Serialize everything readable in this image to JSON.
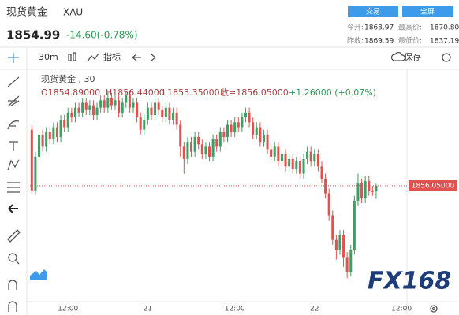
{
  "header": {
    "title": "现货黄金",
    "symbol": "XAU",
    "price": "1854.99",
    "change": "-14.60(-0.78%)",
    "buttons": [
      "交易",
      "全屏"
    ],
    "stats": [
      [
        "今开:",
        "1868.97",
        "最高价:",
        "1870.80"
      ],
      [
        "昨收:",
        "1869.59",
        "最低价:",
        "1837.19"
      ]
    ]
  },
  "toolbar": {
    "interval": "30m",
    "indicators": "指标",
    "save": "保存"
  },
  "chart_data": {
    "type": "candlestick",
    "legend": {
      "name": "现货黄金 , 30",
      "open": "O1854.89000",
      "high": "H1856.44000",
      "low": "L1853.35000",
      "close": "收=1856.05000",
      "change": "+1.26000 (+0.07%)"
    },
    "up_color": "#3f9f63",
    "down_color": "#e0514f",
    "xlim": [
      -0.5,
      103.5
    ],
    "xticks": [
      {
        "value": 10,
        "label": "12:00"
      },
      {
        "value": 32,
        "label": "21"
      },
      {
        "value": 56,
        "label": "12:00"
      },
      {
        "value": 78,
        "label": "22"
      },
      {
        "value": 102,
        "label": "12:00"
      }
    ],
    "ylim": [
      1832.4,
      1879.5
    ],
    "price_line": {
      "value": 1856.05,
      "label": "1856.05000",
      "color": "#e0514f"
    },
    "watermark": "FX168",
    "ohlc": [
      [
        1867.5,
        1868.5,
        1854.5,
        1855.1
      ],
      [
        1855.1,
        1863.0,
        1854.1,
        1862.0
      ],
      [
        1862.0,
        1867.5,
        1861.0,
        1866.5
      ],
      [
        1866.5,
        1867.5,
        1863.0,
        1864.0
      ],
      [
        1864.0,
        1868.0,
        1863.0,
        1867.0
      ],
      [
        1867.0,
        1868.0,
        1864.5,
        1865.5
      ],
      [
        1865.5,
        1869.0,
        1864.5,
        1868.0
      ],
      [
        1868.0,
        1869.0,
        1865.0,
        1866.0
      ],
      [
        1866.0,
        1870.5,
        1865.0,
        1869.5
      ],
      [
        1869.5,
        1870.5,
        1867.0,
        1868.0
      ],
      [
        1868.0,
        1872.0,
        1867.0,
        1871.0
      ],
      [
        1871.0,
        1872.0,
        1869.0,
        1870.0
      ],
      [
        1870.0,
        1873.0,
        1869.0,
        1872.0
      ],
      [
        1872.0,
        1873.0,
        1870.0,
        1871.0
      ],
      [
        1871.0,
        1874.0,
        1870.0,
        1873.0
      ],
      [
        1873.0,
        1874.0,
        1870.5,
        1871.5
      ],
      [
        1871.5,
        1873.5,
        1870.5,
        1872.5
      ],
      [
        1872.5,
        1873.5,
        1869.5,
        1870.5
      ],
      [
        1870.5,
        1873.0,
        1869.5,
        1872.0
      ],
      [
        1872.0,
        1874.5,
        1871.0,
        1873.5
      ],
      [
        1873.5,
        1874.5,
        1871.0,
        1872.0
      ],
      [
        1872.0,
        1875.0,
        1871.0,
        1874.0
      ],
      [
        1874.0,
        1875.0,
        1871.5,
        1872.5
      ],
      [
        1872.5,
        1874.5,
        1871.5,
        1873.5
      ],
      [
        1873.5,
        1874.5,
        1870.0,
        1871.0
      ],
      [
        1871.0,
        1874.0,
        1870.0,
        1873.0
      ],
      [
        1873.0,
        1875.5,
        1872.0,
        1874.5
      ],
      [
        1874.5,
        1875.5,
        1871.0,
        1872.0
      ],
      [
        1872.0,
        1874.0,
        1871.0,
        1873.0
      ],
      [
        1873.0,
        1874.0,
        1869.0,
        1870.0
      ],
      [
        1870.0,
        1871.0,
        1866.5,
        1867.5
      ],
      [
        1867.5,
        1870.5,
        1866.5,
        1869.5
      ],
      [
        1869.5,
        1873.0,
        1868.5,
        1872.0
      ],
      [
        1872.0,
        1873.0,
        1869.5,
        1870.5
      ],
      [
        1870.5,
        1874.0,
        1869.5,
        1873.0
      ],
      [
        1873.0,
        1874.0,
        1870.5,
        1871.5
      ],
      [
        1871.5,
        1872.5,
        1869.0,
        1870.0
      ],
      [
        1870.0,
        1873.0,
        1869.0,
        1872.0
      ],
      [
        1872.0,
        1873.0,
        1868.5,
        1869.5
      ],
      [
        1869.5,
        1872.0,
        1868.5,
        1871.0
      ],
      [
        1871.0,
        1872.0,
        1867.5,
        1868.5
      ],
      [
        1868.5,
        1869.5,
        1862.0,
        1864.0
      ],
      [
        1864.0,
        1865.0,
        1858.5,
        1861.5
      ],
      [
        1861.5,
        1866.0,
        1860.5,
        1865.0
      ],
      [
        1865.0,
        1866.0,
        1862.0,
        1863.0
      ],
      [
        1863.0,
        1867.0,
        1862.0,
        1866.0
      ],
      [
        1866.0,
        1867.0,
        1863.5,
        1864.5
      ],
      [
        1864.5,
        1865.5,
        1861.5,
        1862.5
      ],
      [
        1862.5,
        1865.0,
        1861.5,
        1864.0
      ],
      [
        1864.0,
        1865.0,
        1861.0,
        1862.0
      ],
      [
        1862.0,
        1866.5,
        1861.0,
        1865.5
      ],
      [
        1865.5,
        1866.5,
        1863.0,
        1864.0
      ],
      [
        1864.0,
        1868.0,
        1863.0,
        1867.0
      ],
      [
        1867.0,
        1868.0,
        1865.0,
        1866.0
      ],
      [
        1866.0,
        1869.5,
        1865.0,
        1868.5
      ],
      [
        1868.5,
        1869.5,
        1866.0,
        1867.0
      ],
      [
        1867.0,
        1870.0,
        1866.0,
        1869.0
      ],
      [
        1869.0,
        1870.0,
        1867.0,
        1868.0
      ],
      [
        1868.0,
        1871.0,
        1867.0,
        1870.0
      ],
      [
        1870.0,
        1872.0,
        1869.0,
        1871.0
      ],
      [
        1871.0,
        1872.0,
        1868.0,
        1869.0
      ],
      [
        1869.0,
        1870.0,
        1865.5,
        1866.5
      ],
      [
        1866.5,
        1869.0,
        1865.5,
        1868.0
      ],
      [
        1868.0,
        1869.0,
        1864.0,
        1865.0
      ],
      [
        1865.0,
        1867.5,
        1864.0,
        1866.5
      ],
      [
        1866.5,
        1867.5,
        1862.5,
        1863.5
      ],
      [
        1863.5,
        1864.5,
        1861.0,
        1862.0
      ],
      [
        1862.0,
        1865.0,
        1861.0,
        1864.0
      ],
      [
        1864.0,
        1865.0,
        1860.0,
        1861.0
      ],
      [
        1861.0,
        1863.5,
        1860.0,
        1862.5
      ],
      [
        1862.5,
        1863.5,
        1859.0,
        1860.0
      ],
      [
        1860.0,
        1862.5,
        1859.0,
        1861.5
      ],
      [
        1861.5,
        1862.5,
        1858.5,
        1859.5
      ],
      [
        1859.5,
        1862.0,
        1858.5,
        1861.0
      ],
      [
        1861.0,
        1862.0,
        1857.5,
        1858.5
      ],
      [
        1858.5,
        1862.5,
        1857.5,
        1861.5
      ],
      [
        1861.5,
        1864.0,
        1860.5,
        1863.0
      ],
      [
        1863.0,
        1864.0,
        1860.0,
        1861.0
      ],
      [
        1861.0,
        1863.5,
        1860.0,
        1862.5
      ],
      [
        1862.5,
        1863.5,
        1859.0,
        1860.0
      ],
      [
        1860.0,
        1861.0,
        1856.5,
        1857.5
      ],
      [
        1857.5,
        1858.5,
        1853.5,
        1854.5
      ],
      [
        1854.5,
        1855.5,
        1849.0,
        1850.0
      ],
      [
        1850.0,
        1851.0,
        1844.0,
        1845.0
      ],
      [
        1845.0,
        1846.0,
        1841.0,
        1843.0
      ],
      [
        1843.0,
        1847.0,
        1842.0,
        1846.0
      ],
      [
        1846.0,
        1847.0,
        1839.5,
        1841.5
      ],
      [
        1841.5,
        1842.5,
        1837.19,
        1838.5
      ],
      [
        1838.5,
        1844.0,
        1837.5,
        1843.0
      ],
      [
        1843.0,
        1854.0,
        1842.0,
        1853.0
      ],
      [
        1853.0,
        1858.5,
        1852.0,
        1856.5
      ],
      [
        1856.5,
        1857.5,
        1852.5,
        1853.5
      ],
      [
        1853.5,
        1858.0,
        1852.5,
        1857.0
      ],
      [
        1857.0,
        1858.0,
        1854.0,
        1855.0
      ],
      [
        1855.0,
        1856.0,
        1854.0,
        1854.79
      ],
      [
        1854.89,
        1856.44,
        1853.35,
        1856.05
      ]
    ]
  }
}
